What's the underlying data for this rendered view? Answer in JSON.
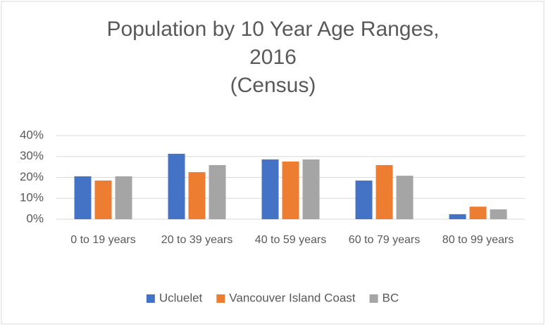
{
  "chart_data": {
    "type": "bar",
    "title": "Population by 10 Year Age Ranges,\n2016\n(Census)",
    "categories": [
      "0 to 19 years",
      "20 to 39 years",
      "40 to 59 years",
      "60 to 79 years",
      "80 to 99 years"
    ],
    "series": [
      {
        "name": "Ucluelet",
        "color": "#4472c4",
        "values": [
          20.5,
          31.3,
          28.6,
          18.5,
          2.4
        ]
      },
      {
        "name": "Vancouver Island Coast",
        "color": "#ed7d31",
        "values": [
          18.5,
          22.5,
          27.6,
          25.9,
          6.0
        ]
      },
      {
        "name": "BC",
        "color": "#a5a5a5",
        "values": [
          20.5,
          25.9,
          28.6,
          20.8,
          4.7
        ]
      }
    ],
    "ylim": [
      0,
      40
    ],
    "yticks": [
      {
        "value": 0,
        "label": "0%"
      },
      {
        "value": 10,
        "label": "10%"
      },
      {
        "value": 20,
        "label": "20%"
      },
      {
        "value": 30,
        "label": "30%"
      },
      {
        "value": 40,
        "label": "40%"
      }
    ],
    "grid": true,
    "legend": "bottom"
  }
}
